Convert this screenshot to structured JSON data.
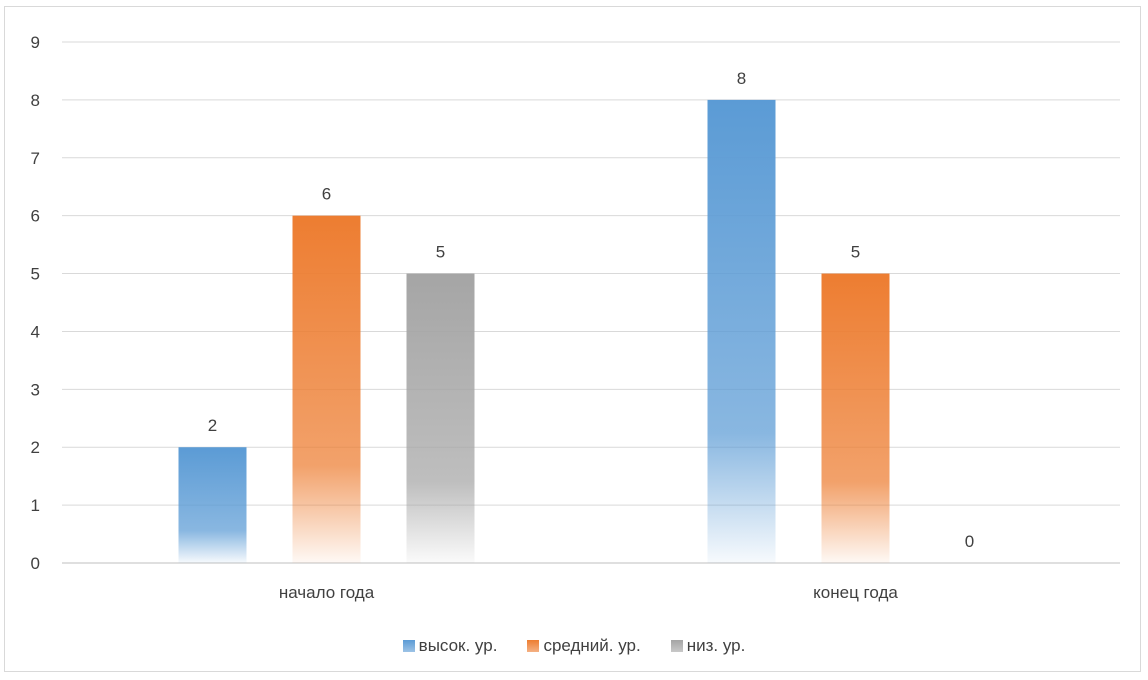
{
  "chart_data": {
    "type": "bar",
    "categories": [
      "начало года",
      "конец года"
    ],
    "series": [
      {
        "name": "высок. ур.",
        "values": [
          2,
          8
        ],
        "color": "#5b9bd5"
      },
      {
        "name": "средний. ур.",
        "values": [
          6,
          5
        ],
        "color": "#ed7d31"
      },
      {
        "name": "низ. ур.",
        "values": [
          5,
          0
        ],
        "color": "#a5a5a5"
      }
    ],
    "ylim": [
      0,
      9
    ],
    "yticks": [
      "0",
      "1",
      "2",
      "3",
      "4",
      "5",
      "6",
      "7",
      "8",
      "9"
    ],
    "grid": true,
    "legend_position": "bottom"
  }
}
